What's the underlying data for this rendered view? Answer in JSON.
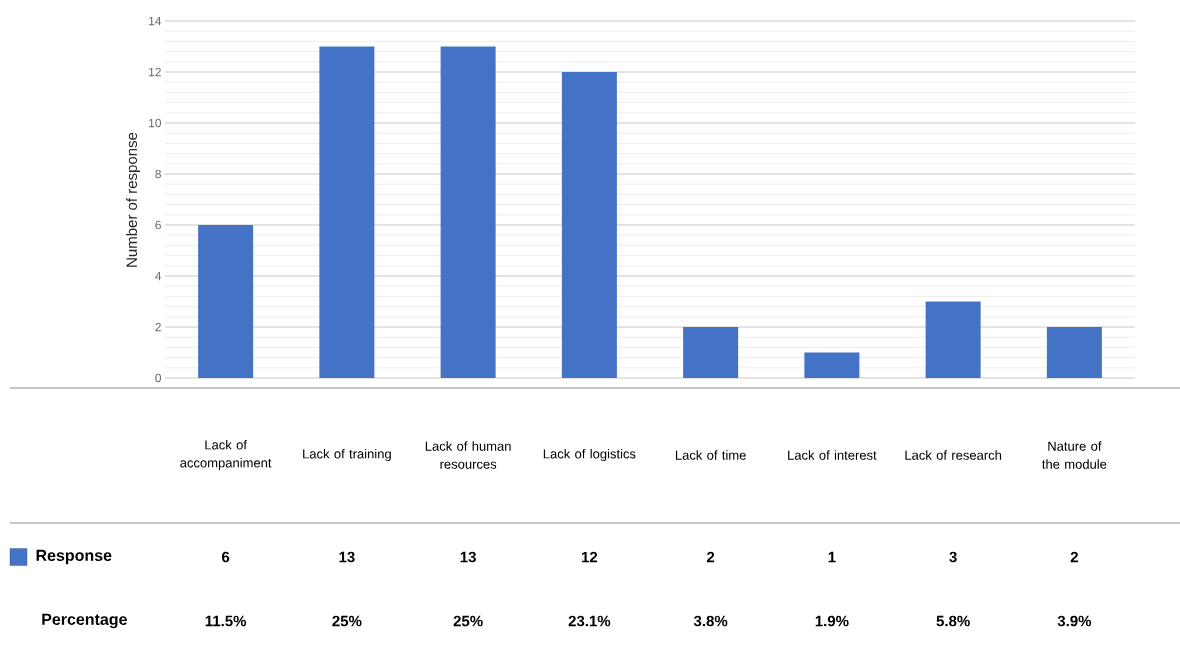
{
  "chart_data": {
    "type": "bar",
    "ylabel": "Number of response",
    "categories": [
      "Lack of accompaniment",
      "Lack of training",
      "Lack of human resources",
      "Lack of logistics",
      "Lack of time",
      "Lack of interest",
      "Lack of research",
      "Nature of the module"
    ],
    "series": [
      {
        "name": "Response",
        "color": "#4472c4",
        "values": [
          6,
          13,
          13,
          12,
          2,
          1,
          3,
          2
        ]
      }
    ],
    "ylim": [
      0,
      14
    ],
    "yticks": [
      0,
      2,
      4,
      6,
      8,
      10,
      12,
      14
    ],
    "grid": "y",
    "legend": "bottom",
    "data_labels": true,
    "annotations": [
      "Percentage",
      "11.5%",
      "25%",
      "25%",
      "23.1%",
      "3.8%",
      "1.9%",
      "5.8%",
      "3.9%"
    ]
  }
}
